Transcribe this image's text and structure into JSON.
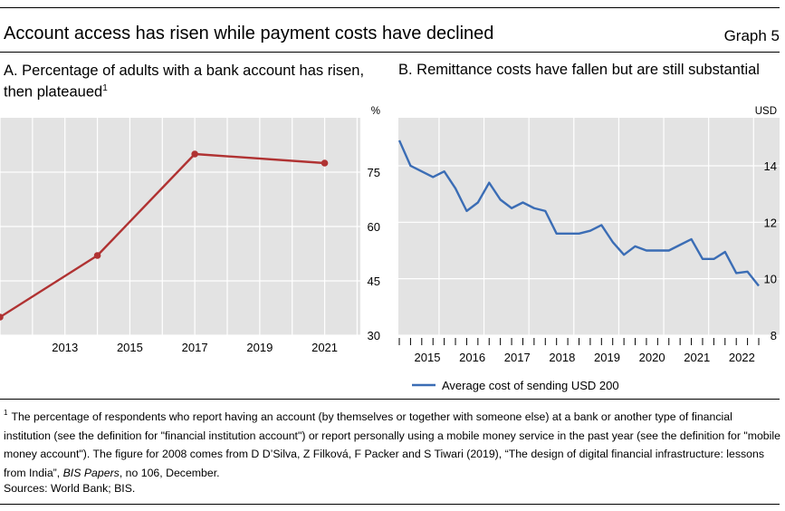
{
  "header": {
    "title": "Account access has risen while payment costs have declined",
    "graph_label": "Graph 5"
  },
  "chart_data": [
    {
      "panel": "A",
      "type": "line",
      "title": "A. Percentage of adults with a bank account has risen, then plateaued",
      "title_footnote_marker": "1",
      "unit_label": "%",
      "x": [
        2011,
        2014,
        2017,
        2021
      ],
      "series": [
        {
          "values": [
            35,
            52,
            80,
            77.5
          ],
          "color": "#b03232"
        }
      ],
      "x_range": [
        2011,
        2022.1
      ],
      "xtick_values": [
        2013,
        2015,
        2017,
        2019,
        2021
      ],
      "xtick_labels": [
        "2013",
        "2015",
        "2017",
        "2019",
        "2021"
      ],
      "ylim": [
        30,
        90
      ],
      "ytick_values": [
        30,
        45,
        60,
        75
      ],
      "ytick_labels": [
        "30",
        "45",
        "60",
        "75"
      ],
      "grid": true,
      "legend": "none"
    },
    {
      "panel": "B",
      "type": "line",
      "title": "B. Remittance costs have fallen but are still substantial",
      "unit_label": "USD",
      "x": [
        "2014-Q1",
        "2014-Q2",
        "2014-Q3",
        "2014-Q4",
        "2015-Q1",
        "2015-Q2",
        "2015-Q3",
        "2015-Q4",
        "2016-Q1",
        "2016-Q2",
        "2016-Q3",
        "2016-Q4",
        "2017-Q1",
        "2017-Q2",
        "2017-Q3",
        "2017-Q4",
        "2018-Q1",
        "2018-Q2",
        "2018-Q3",
        "2018-Q4",
        "2019-Q1",
        "2019-Q2",
        "2019-Q3",
        "2019-Q4",
        "2020-Q1",
        "2020-Q2",
        "2020-Q3",
        "2020-Q4",
        "2021-Q1",
        "2021-Q2",
        "2021-Q3",
        "2021-Q4",
        "2022-Q1"
      ],
      "series": [
        {
          "name": "Average cost of sending USD 200",
          "values": [
            14.9,
            14.0,
            13.8,
            13.6,
            13.8,
            13.2,
            12.4,
            12.7,
            13.4,
            12.8,
            12.5,
            12.7,
            12.5,
            12.4,
            11.6,
            11.6,
            11.6,
            11.7,
            11.9,
            11.3,
            10.85,
            11.15,
            11.0,
            11.0,
            11.0,
            11.2,
            11.4,
            10.7,
            10.7,
            10.95,
            10.2,
            10.25,
            9.75
          ],
          "color": "#3b6db5"
        }
      ],
      "xtick_labels": [
        "2015",
        "2016",
        "2017",
        "2018",
        "2019",
        "2020",
        "2021",
        "2022"
      ],
      "ylim": [
        8,
        15.7
      ],
      "ytick_values": [
        8,
        10,
        12,
        14
      ],
      "ytick_labels": [
        "8",
        "10",
        "12",
        "14"
      ],
      "grid": true,
      "legend": "bottom"
    }
  ],
  "footnote": {
    "marker": "1",
    "text_main": "The percentage of respondents who report having an account (by themselves or together with someone else) at a bank or another type of financial institution (see the definition for \"financial institution account\") or report personally using a mobile money service in the past year (see the definition for \"mobile money account\"). The figure for 2008 comes from D D’Silva, Z Filková, F Packer and S Tiwari (2019), “The design of digital financial infrastructure: lessons from India”, ",
    "text_italic": "BIS Papers",
    "text_end": ", no 106, December."
  },
  "sources": "Sources: World Bank; BIS."
}
